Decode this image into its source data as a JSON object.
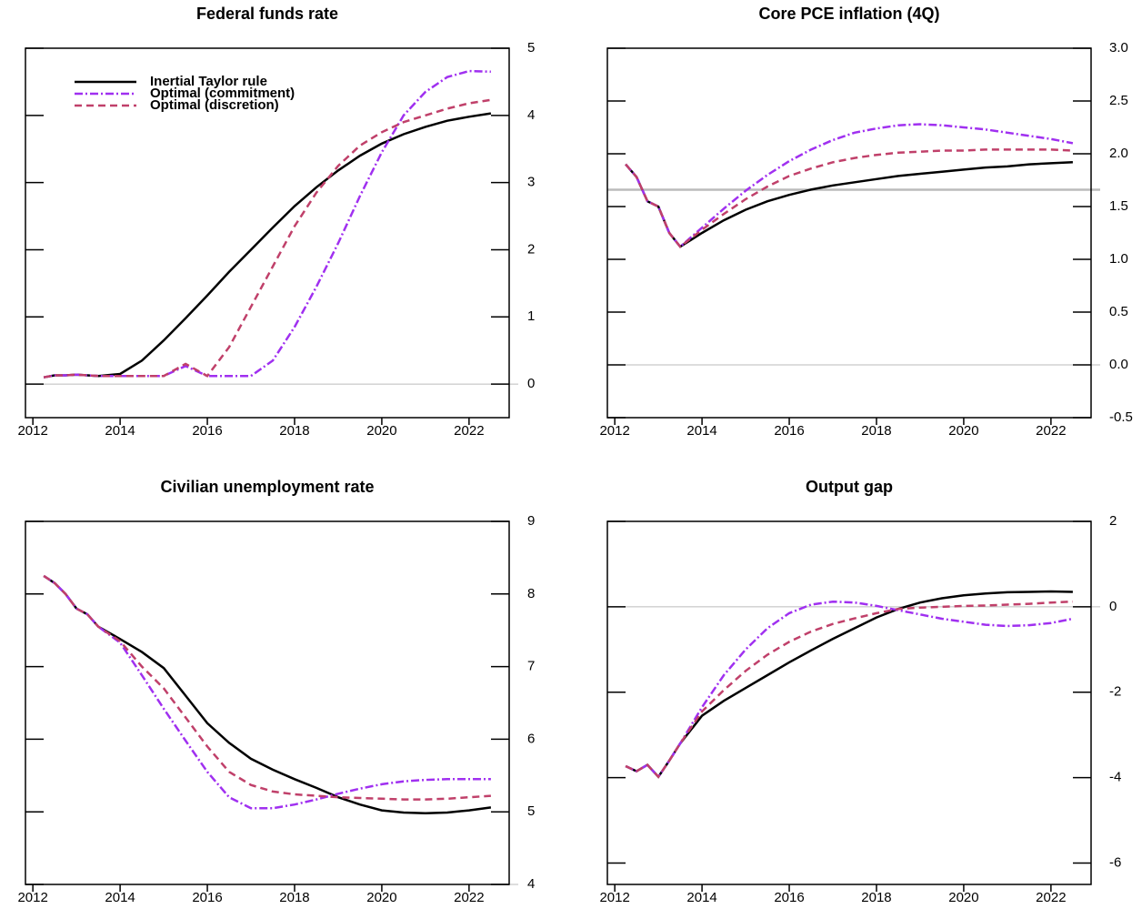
{
  "chart_data": [
    {
      "type": "line",
      "title": "Federal funds rate",
      "legend": "upper left",
      "x": [
        2012.25,
        2012.5,
        2012.75,
        2013,
        2013.25,
        2013.5,
        2014,
        2014.5,
        2015,
        2015.5,
        2016,
        2016.5,
        2017,
        2017.5,
        2018,
        2018.5,
        2019,
        2019.5,
        2020,
        2020.5,
        2021,
        2021.5,
        2022,
        2022.5
      ],
      "xlim": [
        2011.83,
        2022.92
      ],
      "xticks": [
        2012,
        2014,
        2016,
        2018,
        2020,
        2022
      ],
      "ylim": [
        -0.5,
        5
      ],
      "yticks": [
        0,
        1,
        2,
        3,
        4,
        5
      ],
      "reference_lines": [
        0
      ],
      "series": [
        {
          "name": "Inertial Taylor rule",
          "color": "#000000",
          "style": "solid",
          "values": [
            0.1,
            0.13,
            0.13,
            0.14,
            0.13,
            0.12,
            0.15,
            0.35,
            0.65,
            0.98,
            1.32,
            1.67,
            2.0,
            2.33,
            2.65,
            2.93,
            3.18,
            3.4,
            3.58,
            3.72,
            3.83,
            3.92,
            3.98,
            4.03
          ]
        },
        {
          "name": "Optimal (commitment)",
          "color": "#a030f0",
          "style": "dashdot",
          "values": [
            0.1,
            0.13,
            0.13,
            0.14,
            0.13,
            0.12,
            0.12,
            0.12,
            0.12,
            0.27,
            0.12,
            0.12,
            0.12,
            0.35,
            0.85,
            1.45,
            2.1,
            2.8,
            3.45,
            4.0,
            4.35,
            4.57,
            4.66,
            4.65
          ]
        },
        {
          "name": "Optimal (discretion)",
          "color": "#c0406a",
          "style": "dashed",
          "values": [
            0.1,
            0.13,
            0.13,
            0.14,
            0.13,
            0.12,
            0.12,
            0.12,
            0.12,
            0.3,
            0.12,
            0.55,
            1.15,
            1.75,
            2.35,
            2.85,
            3.25,
            3.55,
            3.75,
            3.9,
            4.0,
            4.1,
            4.18,
            4.23
          ]
        }
      ]
    },
    {
      "type": "line",
      "title": "Core PCE inflation (4Q)",
      "x": [
        2012.25,
        2012.5,
        2012.75,
        2013,
        2013.25,
        2013.5,
        2014,
        2014.5,
        2015,
        2015.5,
        2016,
        2016.5,
        2017,
        2017.5,
        2018,
        2018.5,
        2019,
        2019.5,
        2020,
        2020.5,
        2021,
        2021.5,
        2022,
        2022.5
      ],
      "xlim": [
        2011.83,
        2022.92
      ],
      "xticks": [
        2012,
        2014,
        2016,
        2018,
        2020,
        2022
      ],
      "ylim": [
        -0.5,
        3.0
      ],
      "yticks": [
        -0.5,
        {
          "value": 0,
          "label": "0.0"
        },
        0.5,
        {
          "value": 1,
          "label": "1.0"
        },
        1.5,
        {
          "value": 2,
          "label": "2.0"
        },
        2.5,
        {
          "value": 3,
          "label": "3.0"
        }
      ],
      "reference_lines": [
        0,
        1.66
      ],
      "series": [
        {
          "name": "Inertial Taylor rule",
          "color": "#000000",
          "style": "solid",
          "values": [
            1.9,
            1.78,
            1.55,
            1.5,
            1.25,
            1.12,
            1.25,
            1.37,
            1.47,
            1.55,
            1.61,
            1.66,
            1.7,
            1.73,
            1.76,
            1.79,
            1.81,
            1.83,
            1.85,
            1.87,
            1.88,
            1.9,
            1.91,
            1.92
          ]
        },
        {
          "name": "Optimal (commitment)",
          "color": "#a030f0",
          "style": "dashdot",
          "values": [
            1.9,
            1.78,
            1.55,
            1.5,
            1.25,
            1.12,
            1.3,
            1.48,
            1.65,
            1.8,
            1.93,
            2.04,
            2.13,
            2.2,
            2.24,
            2.27,
            2.28,
            2.27,
            2.25,
            2.23,
            2.2,
            2.17,
            2.14,
            2.1
          ]
        },
        {
          "name": "Optimal (discretion)",
          "color": "#c0406a",
          "style": "dashed",
          "values": [
            1.9,
            1.78,
            1.55,
            1.5,
            1.25,
            1.12,
            1.28,
            1.43,
            1.57,
            1.69,
            1.79,
            1.86,
            1.92,
            1.96,
            1.99,
            2.01,
            2.02,
            2.03,
            2.03,
            2.04,
            2.04,
            2.04,
            2.04,
            2.03
          ]
        }
      ]
    },
    {
      "type": "line",
      "title": "Civilian unemployment rate",
      "x": [
        2012.25,
        2012.5,
        2012.75,
        2013,
        2013.25,
        2013.5,
        2014,
        2014.5,
        2015,
        2015.5,
        2016,
        2016.5,
        2017,
        2017.5,
        2018,
        2018.5,
        2019,
        2019.5,
        2020,
        2020.5,
        2021,
        2021.5,
        2022,
        2022.5
      ],
      "xlim": [
        2011.83,
        2022.92
      ],
      "xticks": [
        2012,
        2014,
        2016,
        2018,
        2020,
        2022
      ],
      "ylim": [
        4,
        9
      ],
      "yticks": [
        4,
        5,
        6,
        7,
        8,
        9
      ],
      "reference_lines": [
        4
      ],
      "series": [
        {
          "name": "Inertial Taylor rule",
          "color": "#000000",
          "style": "solid",
          "values": [
            8.25,
            8.15,
            8.0,
            7.8,
            7.72,
            7.55,
            7.38,
            7.2,
            6.98,
            6.6,
            6.22,
            5.95,
            5.73,
            5.58,
            5.45,
            5.33,
            5.2,
            5.1,
            5.02,
            4.99,
            4.98,
            4.99,
            5.02,
            5.06
          ]
        },
        {
          "name": "Optimal (commitment)",
          "color": "#a030f0",
          "style": "dashdot",
          "values": [
            8.25,
            8.15,
            8.0,
            7.8,
            7.72,
            7.55,
            7.33,
            6.88,
            6.42,
            5.98,
            5.55,
            5.2,
            5.05,
            5.05,
            5.1,
            5.17,
            5.25,
            5.32,
            5.38,
            5.42,
            5.44,
            5.45,
            5.45,
            5.45
          ]
        },
        {
          "name": "Optimal (discretion)",
          "color": "#c0406a",
          "style": "dashed",
          "values": [
            8.25,
            8.15,
            8.0,
            7.8,
            7.72,
            7.55,
            7.35,
            7.0,
            6.7,
            6.3,
            5.9,
            5.55,
            5.37,
            5.28,
            5.24,
            5.22,
            5.2,
            5.19,
            5.18,
            5.17,
            5.17,
            5.18,
            5.2,
            5.22
          ]
        }
      ]
    },
    {
      "type": "line",
      "title": "Output gap",
      "x": [
        2012.25,
        2012.5,
        2012.75,
        2013,
        2013.25,
        2013.5,
        2014,
        2014.5,
        2015,
        2015.5,
        2016,
        2016.5,
        2017,
        2017.5,
        2018,
        2018.5,
        2019,
        2019.5,
        2020,
        2020.5,
        2021,
        2021.5,
        2022,
        2022.5
      ],
      "xlim": [
        2011.83,
        2022.92
      ],
      "xticks": [
        2012,
        2014,
        2016,
        2018,
        2020,
        2022
      ],
      "ylim": [
        -6.5,
        2
      ],
      "yticks": [
        -6,
        -4,
        -2,
        0,
        2
      ],
      "reference_lines": [
        0
      ],
      "series": [
        {
          "name": "Inertial Taylor rule",
          "color": "#000000",
          "style": "solid",
          "values": [
            -3.73,
            -3.85,
            -3.7,
            -3.98,
            -3.6,
            -3.2,
            -2.55,
            -2.2,
            -1.9,
            -1.6,
            -1.3,
            -1.02,
            -0.75,
            -0.5,
            -0.25,
            -0.05,
            0.1,
            0.2,
            0.27,
            0.31,
            0.34,
            0.35,
            0.36,
            0.35
          ]
        },
        {
          "name": "Optimal (commitment)",
          "color": "#a030f0",
          "style": "dashdot",
          "values": [
            -3.73,
            -3.85,
            -3.7,
            -3.98,
            -3.6,
            -3.2,
            -2.35,
            -1.6,
            -1.0,
            -0.5,
            -0.15,
            0.05,
            0.12,
            0.1,
            0.02,
            -0.08,
            -0.18,
            -0.28,
            -0.35,
            -0.42,
            -0.45,
            -0.43,
            -0.38,
            -0.28
          ]
        },
        {
          "name": "Optimal (discretion)",
          "color": "#c0406a",
          "style": "dashed",
          "values": [
            -3.73,
            -3.85,
            -3.7,
            -3.98,
            -3.6,
            -3.2,
            -2.45,
            -1.95,
            -1.5,
            -1.12,
            -0.82,
            -0.58,
            -0.4,
            -0.27,
            -0.15,
            -0.05,
            -0.02,
            0.0,
            0.02,
            0.03,
            0.05,
            0.07,
            0.1,
            0.12
          ]
        }
      ]
    }
  ]
}
